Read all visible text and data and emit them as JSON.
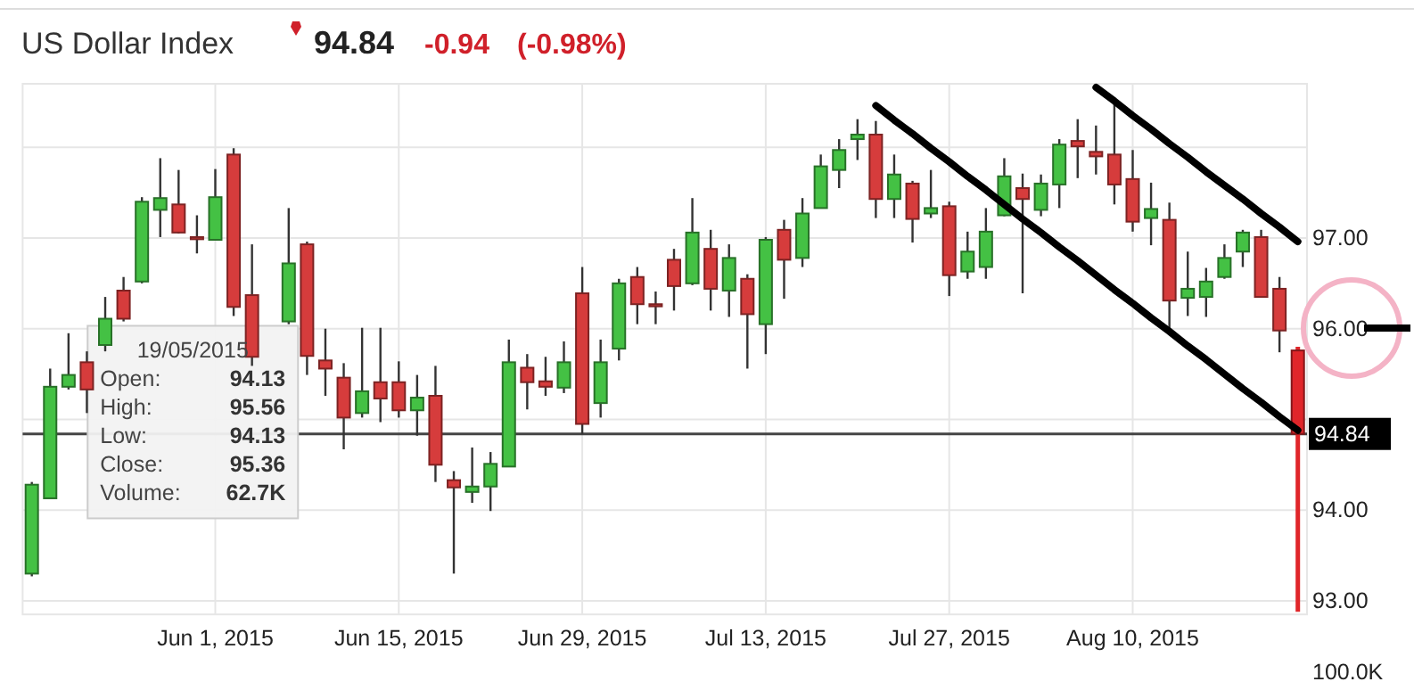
{
  "chart_data": {
    "type": "candlestick",
    "title": "US Dollar Index",
    "annotations": [
      "94.84",
      "-0.94",
      "(-0.98%)",
      "19/05/2015",
      "Open:",
      "94.13",
      "High:",
      "95.56",
      "Low:",
      "94.13",
      "Close:",
      "95.36",
      "Volume:",
      "62.7K",
      "100.0K"
    ],
    "categories": [
      null,
      null,
      null,
      null,
      null,
      null,
      null,
      null,
      null,
      null,
      "Jun 1, 2015",
      null,
      null,
      null,
      null,
      null,
      null,
      null,
      null,
      null,
      "Jun 15, 2015",
      null,
      null,
      null,
      null,
      null,
      null,
      null,
      null,
      null,
      "Jun 29, 2015",
      null,
      null,
      null,
      null,
      null,
      null,
      null,
      null,
      null,
      "Jul 13, 2015",
      null,
      null,
      null,
      null,
      null,
      null,
      null,
      null,
      null,
      "Jul 27, 2015",
      null,
      null,
      null,
      null,
      null,
      null,
      null,
      null,
      null,
      "Aug 10, 2015",
      null,
      null,
      null,
      null,
      null,
      null,
      null,
      null,
      null
    ],
    "ohlc": [
      [
        93.3,
        94.31,
        93.27,
        94.28
      ],
      [
        94.13,
        95.56,
        94.13,
        95.36
      ],
      [
        95.36,
        95.95,
        95.33,
        95.49
      ],
      [
        95.63,
        95.75,
        95.07,
        95.33
      ],
      [
        95.82,
        96.35,
        95.75,
        96.11
      ],
      [
        96.42,
        96.57,
        96.08,
        96.11
      ],
      [
        96.52,
        97.45,
        96.5,
        97.4
      ],
      [
        97.31,
        97.88,
        97.01,
        97.44
      ],
      [
        97.37,
        97.75,
        97.05,
        97.06
      ],
      [
        97.01,
        97.25,
        96.83,
        96.99
      ],
      [
        96.98,
        97.76,
        96.98,
        97.45
      ],
      [
        97.92,
        97.99,
        96.14,
        96.24
      ],
      [
        96.37,
        96.93,
        95.59,
        95.69
      ],
      null,
      [
        96.08,
        97.33,
        96.05,
        96.72
      ],
      [
        96.93,
        96.96,
        95.49,
        95.7
      ],
      [
        95.65,
        96.0,
        95.26,
        95.56
      ],
      [
        95.46,
        95.62,
        94.67,
        95.02
      ],
      [
        95.07,
        96.01,
        95.02,
        95.31
      ],
      [
        95.41,
        96.01,
        94.97,
        95.23
      ],
      [
        95.41,
        95.64,
        95.02,
        95.1
      ],
      [
        95.1,
        95.49,
        94.82,
        95.24
      ],
      [
        95.26,
        95.59,
        94.31,
        94.5
      ],
      [
        94.33,
        94.43,
        93.3,
        94.25
      ],
      [
        94.2,
        94.69,
        94.08,
        94.26
      ],
      [
        94.26,
        94.64,
        93.99,
        94.51
      ],
      [
        94.48,
        95.88,
        94.48,
        95.63
      ],
      [
        95.57,
        95.72,
        95.11,
        95.41
      ],
      [
        95.42,
        95.69,
        95.26,
        95.36
      ],
      [
        95.35,
        95.86,
        95.29,
        95.63
      ],
      [
        96.39,
        96.68,
        94.84,
        94.95
      ],
      [
        95.18,
        95.88,
        95.02,
        95.63
      ],
      [
        95.78,
        96.55,
        95.65,
        96.5
      ],
      [
        96.57,
        96.68,
        96.05,
        96.27
      ],
      [
        96.27,
        96.41,
        96.05,
        96.25
      ],
      [
        96.76,
        96.88,
        96.2,
        96.47
      ],
      [
        96.5,
        97.44,
        96.48,
        97.06
      ],
      [
        96.88,
        97.09,
        96.2,
        96.44
      ],
      [
        96.42,
        96.93,
        96.13,
        96.78
      ],
      [
        96.55,
        96.6,
        95.56,
        96.16
      ],
      [
        96.05,
        97.01,
        95.72,
        96.98
      ],
      [
        97.09,
        97.2,
        96.33,
        96.76
      ],
      [
        96.78,
        97.44,
        96.68,
        97.27
      ],
      [
        97.33,
        97.92,
        97.33,
        97.79
      ],
      [
        97.75,
        98.09,
        97.55,
        97.97
      ],
      [
        98.09,
        98.31,
        97.86,
        98.14
      ],
      [
        98.14,
        98.29,
        97.22,
        97.43
      ],
      [
        97.43,
        97.92,
        97.22,
        97.7
      ],
      [
        97.6,
        97.63,
        96.95,
        97.21
      ],
      [
        97.27,
        97.75,
        97.22,
        97.33
      ],
      [
        97.35,
        97.4,
        96.36,
        96.59
      ],
      [
        96.63,
        97.07,
        96.55,
        96.85
      ],
      [
        96.68,
        97.33,
        96.55,
        97.07
      ],
      [
        97.25,
        97.88,
        97.24,
        97.68
      ],
      [
        97.55,
        97.71,
        96.39,
        97.43
      ],
      [
        97.31,
        97.7,
        97.24,
        97.6
      ],
      [
        97.59,
        98.09,
        97.33,
        98.03
      ],
      [
        98.07,
        98.31,
        97.66,
        98.01
      ],
      [
        97.95,
        98.24,
        97.7,
        97.9
      ],
      [
        97.92,
        98.53,
        97.37,
        97.59
      ],
      [
        97.65,
        97.97,
        97.07,
        97.18
      ],
      [
        97.22,
        97.61,
        96.92,
        97.32
      ],
      [
        97.2,
        97.39,
        95.98,
        96.31
      ],
      [
        96.34,
        96.85,
        96.14,
        96.44
      ],
      [
        96.35,
        96.67,
        96.13,
        96.52
      ],
      [
        96.57,
        96.93,
        96.55,
        96.78
      ],
      [
        96.85,
        97.09,
        96.68,
        97.06
      ],
      [
        97.01,
        97.09,
        96.35,
        96.35
      ],
      [
        96.44,
        96.57,
        95.74,
        95.98
      ],
      [
        95.76,
        95.8,
        92.88,
        94.84
      ]
    ],
    "colors": [
      "#44c144",
      "#44c144",
      "#44c144",
      "#d63c3c",
      "#44c144",
      "#d63c3c",
      "#44c144",
      "#44c144",
      "#d63c3c",
      "#d63c3c",
      "#44c144",
      "#d63c3c",
      "#d63c3c",
      null,
      "#44c144",
      "#d63c3c",
      "#d63c3c",
      "#d63c3c",
      "#44c144",
      "#d63c3c",
      "#d63c3c",
      "#44c144",
      "#d63c3c",
      "#d63c3c",
      "#44c144",
      "#44c144",
      "#44c144",
      "#d63c3c",
      "#d63c3c",
      "#44c144",
      "#d63c3c",
      "#44c144",
      "#44c144",
      "#d63c3c",
      "#d63c3c",
      "#d63c3c",
      "#44c144",
      "#d63c3c",
      "#44c144",
      "#d63c3c",
      "#44c144",
      "#d63c3c",
      "#44c144",
      "#44c144",
      "#44c144",
      "#44c144",
      "#d63c3c",
      "#44c144",
      "#d63c3c",
      "#44c144",
      "#d63c3c",
      "#44c144",
      "#44c144",
      "#44c144",
      "#d63c3c",
      "#44c144",
      "#44c144",
      "#d63c3c",
      "#d63c3c",
      "#d63c3c",
      "#d63c3c",
      "#44c144",
      "#d63c3c",
      "#44c144",
      "#44c144",
      "#44c144",
      "#44c144",
      "#d63c3c",
      "#d63c3c",
      "#e0262a"
    ],
    "series": [
      {
        "type": "line",
        "values": [
          null,
          null,
          null,
          null,
          null,
          null,
          null,
          null,
          null,
          null,
          null,
          null,
          null,
          null,
          null,
          null,
          null,
          null,
          null,
          null,
          null,
          null,
          null,
          null,
          null,
          null,
          null,
          null,
          null,
          null,
          null,
          null,
          null,
          null,
          null,
          null,
          null,
          null,
          null,
          null,
          null,
          null,
          null,
          null,
          null,
          null,
          98.46,
          98.3,
          98.15,
          97.99,
          97.84,
          97.68,
          97.53,
          97.37,
          97.21,
          97.06,
          96.9,
          96.75,
          96.59,
          96.43,
          96.28,
          96.12,
          95.97,
          95.81,
          95.66,
          95.5,
          95.34,
          95.19,
          95.03,
          94.88
        ],
        "color": "#000000"
      },
      {
        "type": "line",
        "values": [
          null,
          null,
          null,
          null,
          null,
          null,
          null,
          null,
          null,
          null,
          null,
          null,
          null,
          null,
          null,
          null,
          null,
          null,
          null,
          null,
          null,
          null,
          null,
          null,
          null,
          null,
          null,
          null,
          null,
          null,
          null,
          null,
          null,
          null,
          null,
          null,
          null,
          null,
          null,
          null,
          null,
          null,
          null,
          null,
          null,
          null,
          null,
          null,
          null,
          null,
          null,
          null,
          null,
          null,
          null,
          null,
          null,
          null,
          98.66,
          98.51,
          98.35,
          98.2,
          98.04,
          97.89,
          97.73,
          97.58,
          97.43,
          97.27,
          97.12,
          96.96
        ],
        "color": "#000000"
      }
    ],
    "ylim": [
      92.85,
      98.7
    ],
    "yticks": [
      {
        "value": 93,
        "label": "93.00"
      },
      {
        "value": 94,
        "label": "94.00"
      },
      {
        "value": 95,
        "label": null
      },
      {
        "value": 96,
        "label": "96.00"
      },
      {
        "value": 97,
        "label": "97.00"
      },
      {
        "value": 98,
        "label": null
      }
    ],
    "ref_lines": [
      {
        "axis": "y",
        "value": 94.84,
        "label": "94.84",
        "color": "#444444"
      }
    ],
    "grid": true
  }
}
